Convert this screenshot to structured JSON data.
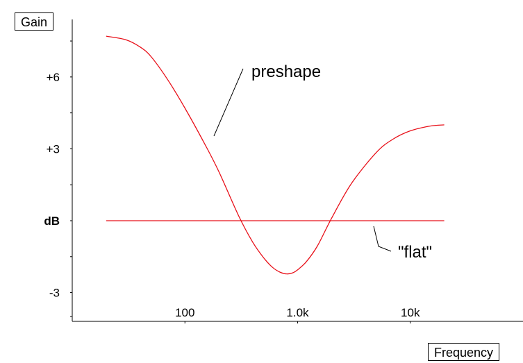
{
  "chart_data": {
    "type": "line",
    "xlabel": "Frequency",
    "ylabel": "Gain",
    "x_scale": "log",
    "xlim": [
      10,
      100000
    ],
    "ylim": [
      -4.2,
      8.4
    ],
    "x_ticks": [
      {
        "value": 100,
        "label": "100"
      },
      {
        "value": 1000,
        "label": "1.0k"
      },
      {
        "value": 10000,
        "label": "10k"
      }
    ],
    "y_ticks": [
      {
        "value": 6,
        "label": "+6",
        "bold": false
      },
      {
        "value": 3,
        "label": "+3",
        "bold": false
      },
      {
        "value": 0,
        "label": "dB",
        "bold": true
      },
      {
        "value": -3,
        "label": "-3",
        "bold": false
      }
    ],
    "grid": false,
    "legend": "none",
    "series": [
      {
        "name": "preshape",
        "color": "#e8111a",
        "x": [
          20,
          30,
          40,
          50,
          70,
          100,
          150,
          200,
          300,
          400,
          500,
          600,
          700,
          800,
          900,
          1000,
          1200,
          1500,
          2000,
          3000,
          5000,
          7000,
          10000,
          15000,
          20000
        ],
        "y": [
          7.7,
          7.55,
          7.25,
          6.85,
          5.9,
          4.7,
          3.2,
          2.05,
          0.2,
          -0.9,
          -1.55,
          -1.95,
          -2.15,
          -2.22,
          -2.18,
          -2.05,
          -1.7,
          -1.05,
          0.1,
          1.55,
          2.85,
          3.4,
          3.75,
          3.95,
          4.0
        ]
      },
      {
        "name": "\"flat\"",
        "color": "#e8111a",
        "x": [
          20,
          20000
        ],
        "y": [
          0,
          0
        ]
      }
    ],
    "annotations": [
      {
        "text": "preshape",
        "series": "preshape"
      },
      {
        "text": "\"flat\"",
        "series": "\"flat\""
      }
    ]
  }
}
